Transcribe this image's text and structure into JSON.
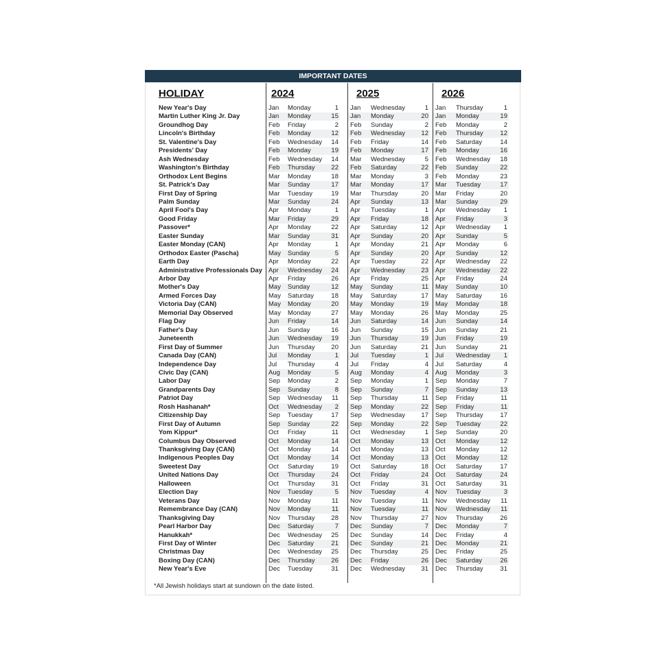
{
  "header": {
    "title": "IMPORTANT DATES"
  },
  "table": {
    "columns": [
      "HOLIDAY",
      "2024",
      "2025",
      "2026"
    ],
    "rows": [
      [
        "New Year's Day",
        "Jan",
        "Monday",
        1,
        "Jan",
        "Wednesday",
        1,
        "Jan",
        "Thursday",
        1
      ],
      [
        "Martin Luther King Jr. Day",
        "Jan",
        "Monday",
        15,
        "Jan",
        "Monday",
        20,
        "Jan",
        "Monday",
        19
      ],
      [
        "Groundhog Day",
        "Feb",
        "Friday",
        2,
        "Feb",
        "Sunday",
        2,
        "Feb",
        "Monday",
        2
      ],
      [
        "Lincoln's Birthday",
        "Feb",
        "Monday",
        12,
        "Feb",
        "Wednesday",
        12,
        "Feb",
        "Thursday",
        12
      ],
      [
        "St. Valentine's Day",
        "Feb",
        "Wednesday",
        14,
        "Feb",
        "Friday",
        14,
        "Feb",
        "Saturday",
        14
      ],
      [
        "Presidents' Day",
        "Feb",
        "Monday",
        19,
        "Feb",
        "Monday",
        17,
        "Feb",
        "Monday",
        16
      ],
      [
        "Ash Wednesday",
        "Feb",
        "Wednesday",
        14,
        "Mar",
        "Wednesday",
        5,
        "Feb",
        "Wednesday",
        18
      ],
      [
        "Washington's Birthday",
        "Feb",
        "Thursday",
        22,
        "Feb",
        "Saturday",
        22,
        "Feb",
        "Sunday",
        22
      ],
      [
        "Orthodox Lent Begins",
        "Mar",
        "Monday",
        18,
        "Mar",
        "Monday",
        3,
        "Feb",
        "Monday",
        23
      ],
      [
        "St. Patrick's Day",
        "Mar",
        "Sunday",
        17,
        "Mar",
        "Monday",
        17,
        "Mar",
        "Tuesday",
        17
      ],
      [
        "First Day of Spring",
        "Mar",
        "Tuesday",
        19,
        "Mar",
        "Thursday",
        20,
        "Mar",
        "Friday",
        20
      ],
      [
        "Palm Sunday",
        "Mar",
        "Sunday",
        24,
        "Apr",
        "Sunday",
        13,
        "Mar",
        "Sunday",
        29
      ],
      [
        "April Fool's Day",
        "Apr",
        "Monday",
        1,
        "Apr",
        "Tuesday",
        1,
        "Apr",
        "Wednesday",
        1
      ],
      [
        "Good Friday",
        "Mar",
        "Friday",
        29,
        "Apr",
        "Friday",
        18,
        "Apr",
        "Friday",
        3
      ],
      [
        "Passover*",
        "Apr",
        "Monday",
        22,
        "Apr",
        "Saturday",
        12,
        "Apr",
        "Wednesday",
        1
      ],
      [
        "Easter Sunday",
        "Mar",
        "Sunday",
        31,
        "Apr",
        "Sunday",
        20,
        "Apr",
        "Sunday",
        5
      ],
      [
        "Easter Monday (CAN)",
        "Apr",
        "Monday",
        1,
        "Apr",
        "Monday",
        21,
        "Apr",
        "Monday",
        6
      ],
      [
        "Orthodox Easter (Pascha)",
        "May",
        "Sunday",
        5,
        "Apr",
        "Sunday",
        20,
        "Apr",
        "Sunday",
        12
      ],
      [
        "Earth Day",
        "Apr",
        "Monday",
        22,
        "Apr",
        "Tuesday",
        22,
        "Apr",
        "Wednesday",
        22
      ],
      [
        "Administrative Professionals Day",
        "Apr",
        "Wednesday",
        24,
        "Apr",
        "Wednesday",
        23,
        "Apr",
        "Wednesday",
        22
      ],
      [
        "Arbor Day",
        "Apr",
        "Friday",
        26,
        "Apr",
        "Friday",
        25,
        "Apr",
        "Friday",
        24
      ],
      [
        "Mother's Day",
        "May",
        "Sunday",
        12,
        "May",
        "Sunday",
        11,
        "May",
        "Sunday",
        10
      ],
      [
        "Armed Forces Day",
        "May",
        "Saturday",
        18,
        "May",
        "Saturday",
        17,
        "May",
        "Saturday",
        16
      ],
      [
        "Victoria Day (CAN)",
        "May",
        "Monday",
        20,
        "May",
        "Monday",
        19,
        "May",
        "Monday",
        18
      ],
      [
        "Memorial Day Observed",
        "May",
        "Monday",
        27,
        "May",
        "Monday",
        26,
        "May",
        "Monday",
        25
      ],
      [
        "Flag Day",
        "Jun",
        "Friday",
        14,
        "Jun",
        "Saturday",
        14,
        "Jun",
        "Sunday",
        14
      ],
      [
        "Father's Day",
        "Jun",
        "Sunday",
        16,
        "Jun",
        "Sunday",
        15,
        "Jun",
        "Sunday",
        21
      ],
      [
        "Juneteenth",
        "Jun",
        "Wednesday",
        19,
        "Jun",
        "Thursday",
        19,
        "Jun",
        "Friday",
        19
      ],
      [
        "First Day of Summer",
        "Jun",
        "Thursday",
        20,
        "Jun",
        "Saturday",
        21,
        "Jun",
        "Sunday",
        21
      ],
      [
        "Canada Day (CAN)",
        "Jul",
        "Monday",
        1,
        "Jul",
        "Tuesday",
        1,
        "Jul",
        "Wednesday",
        1
      ],
      [
        "Independence Day",
        "Jul",
        "Thursday",
        4,
        "Jul",
        "Friday",
        4,
        "Jul",
        "Saturday",
        4
      ],
      [
        "Civic Day (CAN)",
        "Aug",
        "Monday",
        5,
        "Aug",
        "Monday",
        4,
        "Aug",
        "Monday",
        3
      ],
      [
        "Labor Day",
        "Sep",
        "Monday",
        2,
        "Sep",
        "Monday",
        1,
        "Sep",
        "Monday",
        7
      ],
      [
        "Grandparents Day",
        "Sep",
        "Sunday",
        8,
        "Sep",
        "Sunday",
        7,
        "Sep",
        "Sunday",
        13
      ],
      [
        "Patriot Day",
        "Sep",
        "Wednesday",
        11,
        "Sep",
        "Thursday",
        11,
        "Sep",
        "Friday",
        11
      ],
      [
        "Rosh Hashanah*",
        "Oct",
        "Wednesday",
        2,
        "Sep",
        "Monday",
        22,
        "Sep",
        "Friday",
        11
      ],
      [
        "Citizenship Day",
        "Sep",
        "Tuesday",
        17,
        "Sep",
        "Wednesday",
        17,
        "Sep",
        "Thursday",
        17
      ],
      [
        "First Day of Autumn",
        "Sep",
        "Sunday",
        22,
        "Sep",
        "Monday",
        22,
        "Sep",
        "Tuesday",
        22
      ],
      [
        "Yom Kippur*",
        "Oct",
        "Friday",
        11,
        "Oct",
        "Wednesday",
        1,
        "Sep",
        "Sunday",
        20
      ],
      [
        "Columbus Day Observed",
        "Oct",
        "Monday",
        14,
        "Oct",
        "Monday",
        13,
        "Oct",
        "Monday",
        12
      ],
      [
        "Thanksgiving Day (CAN)",
        "Oct",
        "Monday",
        14,
        "Oct",
        "Monday",
        13,
        "Oct",
        "Monday",
        12
      ],
      [
        "Indigenous Peoples Day",
        "Oct",
        "Monday",
        14,
        "Oct",
        "Monday",
        13,
        "Oct",
        "Monday",
        12
      ],
      [
        "Sweetest Day",
        "Oct",
        "Saturday",
        19,
        "Oct",
        "Saturday",
        18,
        "Oct",
        "Saturday",
        17
      ],
      [
        "United Nations Day",
        "Oct",
        "Thursday",
        24,
        "Oct",
        "Friday",
        24,
        "Oct",
        "Saturday",
        24
      ],
      [
        "Halloween",
        "Oct",
        "Thursday",
        31,
        "Oct",
        "Friday",
        31,
        "Oct",
        "Saturday",
        31
      ],
      [
        "Election Day",
        "Nov",
        "Tuesday",
        5,
        "Nov",
        "Tuesday",
        4,
        "Nov",
        "Tuesday",
        3
      ],
      [
        "Veterans Day",
        "Nov",
        "Monday",
        11,
        "Nov",
        "Tuesday",
        11,
        "Nov",
        "Wednesday",
        11
      ],
      [
        "Remembrance Day (CAN)",
        "Nov",
        "Monday",
        11,
        "Nov",
        "Tuesday",
        11,
        "Nov",
        "Wednesday",
        11
      ],
      [
        "Thanksgiving Day",
        "Nov",
        "Thursday",
        28,
        "Nov",
        "Thursday",
        27,
        "Nov",
        "Thursday",
        26
      ],
      [
        "Pearl Harbor Day",
        "Dec",
        "Saturday",
        7,
        "Dec",
        "Sunday",
        7,
        "Dec",
        "Monday",
        7
      ],
      [
        "Hanukkah*",
        "Dec",
        "Wednesday",
        25,
        "Dec",
        "Sunday",
        14,
        "Dec",
        "Friday",
        4
      ],
      [
        "First Day of Winter",
        "Dec",
        "Saturday",
        21,
        "Dec",
        "Sunday",
        21,
        "Dec",
        "Monday",
        21
      ],
      [
        "Christmas Day",
        "Dec",
        "Wednesday",
        25,
        "Dec",
        "Thursday",
        25,
        "Dec",
        "Friday",
        25
      ],
      [
        "Boxing Day (CAN)",
        "Dec",
        "Thursday",
        26,
        "Dec",
        "Friday",
        26,
        "Dec",
        "Saturday",
        26
      ],
      [
        "New Year's Eve",
        "Dec",
        "Tuesday",
        31,
        "Dec",
        "Wednesday",
        31,
        "Dec",
        "Thursday",
        31
      ]
    ]
  },
  "footnote": "*All Jewish holidays start at sundown on the date listed."
}
